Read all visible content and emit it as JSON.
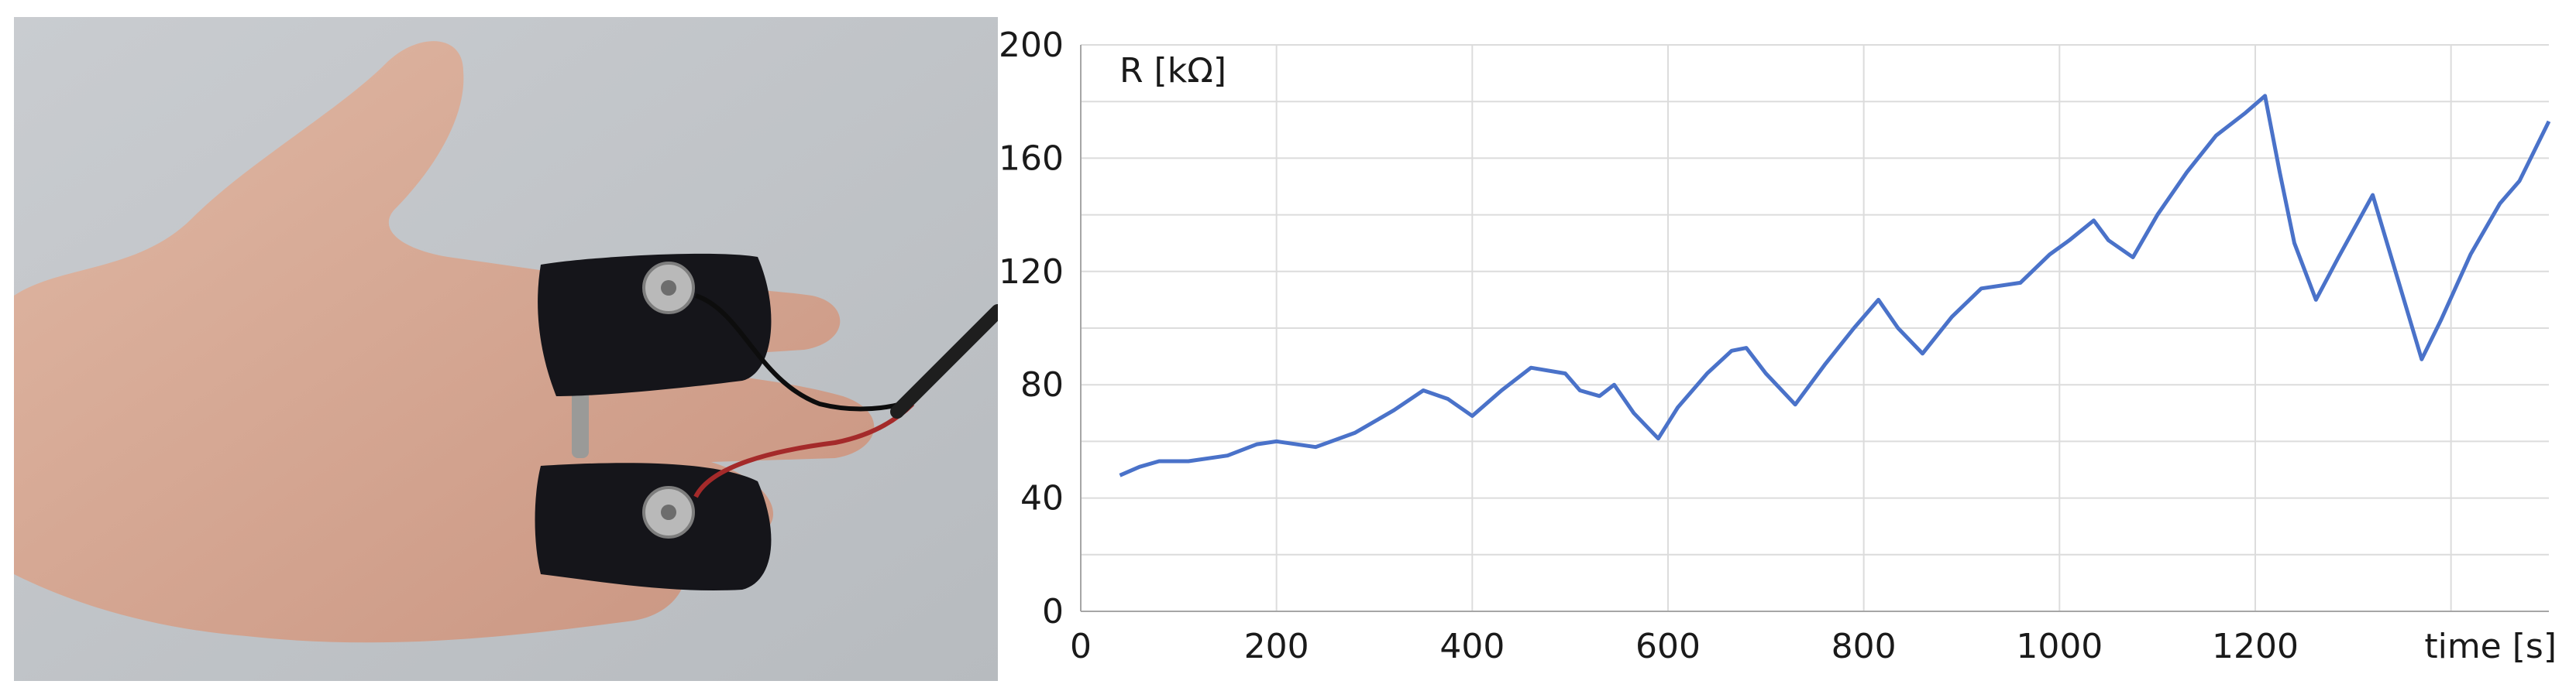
{
  "photo": {
    "description_icon": "hand-with-finger-electrodes"
  },
  "chart_data": {
    "type": "line",
    "title": "",
    "xlabel": "time [s]",
    "ylabel": "R [kΩ]",
    "xlim": [
      0,
      1500
    ],
    "ylim": [
      0,
      200
    ],
    "x_ticks": [
      "0",
      "200",
      "400",
      "600",
      "800",
      "1000",
      "1200"
    ],
    "y_ticks": [
      "0",
      "40",
      "80",
      "120",
      "160",
      "200"
    ],
    "grid": true,
    "line_color": "#4a72c9",
    "series": [
      {
        "x": [
          40,
          60,
          80,
          110,
          150,
          180,
          200,
          240,
          280,
          320,
          350,
          375,
          400,
          430,
          460,
          495,
          510,
          530,
          545,
          565,
          590,
          610,
          640,
          665,
          680,
          700,
          730,
          760,
          790,
          815,
          835,
          860,
          890,
          920,
          960,
          990,
          1010,
          1035,
          1050,
          1075,
          1100,
          1130,
          1160,
          1190,
          1210,
          1225,
          1240,
          1262,
          1285,
          1320,
          1345,
          1370,
          1390,
          1420,
          1450,
          1470,
          1500
        ],
        "y": [
          48,
          51,
          53,
          53,
          55,
          59,
          60,
          58,
          63,
          71,
          78,
          75,
          69,
          78,
          86,
          84,
          78,
          76,
          80,
          70,
          61,
          72,
          84,
          92,
          93,
          84,
          73,
          87,
          100,
          110,
          100,
          91,
          104,
          114,
          116,
          126,
          131,
          138,
          131,
          125,
          140,
          155,
          168,
          176,
          182,
          155,
          130,
          110,
          125,
          147,
          118,
          89,
          103,
          126,
          144,
          152,
          173
        ]
      }
    ]
  }
}
